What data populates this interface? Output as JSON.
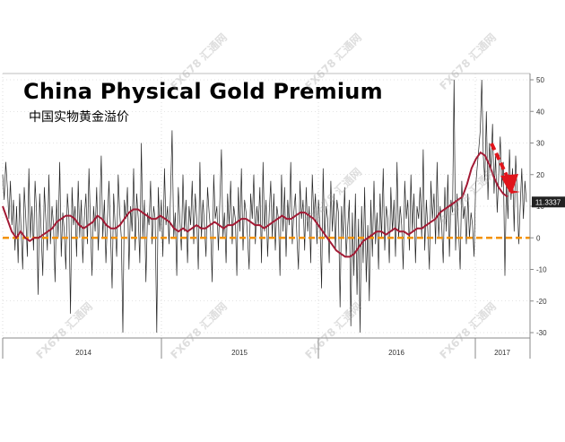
{
  "chart_data": {
    "type": "line",
    "title": "China Physical Gold Premium",
    "subtitle": "中国实物黄金溢价",
    "x_ticks": [
      "2014",
      "2015",
      "2016",
      "2017"
    ],
    "y_ticks": [
      "50",
      "40",
      "30",
      "20",
      "10",
      "0",
      "-10",
      "-20",
      "-30"
    ],
    "ylim": [
      -30,
      50
    ],
    "last_value_label": "11.3337",
    "watermark": "FX678 汇通网",
    "series": [
      {
        "values": [
          20,
          12,
          24,
          16,
          6,
          18,
          4,
          12,
          -4,
          10,
          -8,
          14,
          2,
          -10,
          16,
          6,
          -6,
          22,
          0,
          10,
          -4,
          18,
          8,
          -18,
          14,
          2,
          -12,
          16,
          6,
          -4,
          20,
          -2,
          10,
          4,
          -14,
          12,
          0,
          24,
          -6,
          8,
          2,
          -10,
          14,
          6,
          -24,
          16,
          4,
          10,
          -6,
          18,
          0,
          12,
          -8,
          6,
          14,
          -2,
          22,
          4,
          -12,
          10,
          2,
          16,
          -4,
          8,
          26,
          0,
          12,
          -8,
          6,
          18,
          2,
          -16,
          14,
          4,
          -6,
          20,
          8,
          0,
          -30,
          12,
          6,
          16,
          -10,
          10,
          2,
          22,
          -4,
          14,
          6,
          -8,
          30,
          0,
          12,
          -14,
          8,
          4,
          18,
          -2,
          10,
          6,
          -30,
          16,
          2,
          12,
          -6,
          22,
          4,
          10,
          -2,
          14,
          34,
          0,
          8,
          -12,
          16,
          6,
          -4,
          20,
          2,
          12,
          -8,
          10,
          4,
          18,
          -2,
          14,
          6,
          -10,
          24,
          0,
          12,
          4,
          -6,
          16,
          8,
          2,
          -14,
          20,
          6,
          10,
          -4,
          12,
          28,
          0,
          8,
          -8,
          14,
          4,
          18,
          -2,
          10,
          6,
          -12,
          16,
          2,
          22,
          -4,
          12,
          8,
          0,
          -10,
          14,
          6,
          20,
          -2,
          10,
          4,
          16,
          -8,
          24,
          2,
          12,
          -6,
          8,
          18,
          0,
          14,
          -4,
          10,
          6,
          -12,
          20,
          2,
          16,
          -6,
          12,
          4,
          24,
          -2,
          8,
          14,
          0,
          -10,
          18,
          6,
          12,
          -4,
          16,
          2,
          10,
          -8,
          20,
          6,
          14,
          -2,
          12,
          4,
          -16,
          22,
          0,
          10,
          6,
          -8,
          18,
          2,
          14,
          -4,
          12,
          8,
          -22,
          10,
          0,
          16,
          -6,
          4,
          12,
          -28,
          8,
          -12,
          14,
          -18,
          6,
          -30,
          10,
          -8,
          16,
          -14,
          4,
          -20,
          12,
          -6,
          18,
          -2,
          8,
          -10,
          14,
          0,
          22,
          -4,
          10,
          6,
          -8,
          16,
          2,
          12,
          -6,
          24,
          0,
          10,
          4,
          -10,
          18,
          6,
          12,
          -4,
          20,
          2,
          14,
          -8,
          10,
          6,
          16,
          0,
          28,
          -4,
          12,
          2,
          -10,
          18,
          6,
          14,
          -2,
          24,
          0,
          10,
          4,
          -8,
          16,
          2,
          20,
          -6,
          12,
          8,
          50,
          -4,
          14,
          2,
          -10,
          18,
          6,
          10,
          -2,
          14,
          0,
          8,
          4,
          -6,
          16,
          22,
          28,
          34,
          50,
          26,
          18,
          40,
          12,
          30,
          22,
          36,
          14,
          26,
          8,
          20,
          32,
          16,
          24,
          -12,
          18,
          6,
          28,
          12,
          22,
          2,
          26,
          14,
          -2,
          10,
          22,
          6,
          18,
          11.3
        ]
      },
      {
        "values": [
          10,
          6,
          2,
          0,
          2,
          0,
          -1,
          0,
          0,
          1,
          2,
          3,
          5,
          6,
          7,
          7,
          6,
          4,
          3,
          4,
          5,
          7,
          6,
          4,
          3,
          3,
          4,
          6,
          8,
          9,
          9,
          8,
          7,
          6,
          6,
          7,
          6,
          5,
          3,
          2,
          3,
          2,
          3,
          4,
          3,
          3,
          4,
          5,
          4,
          3,
          4,
          4,
          5,
          6,
          6,
          5,
          4,
          4,
          3,
          4,
          5,
          6,
          7,
          6,
          6,
          7,
          8,
          8,
          7,
          6,
          4,
          2,
          0,
          -2,
          -4,
          -5,
          -6,
          -6,
          -5,
          -3,
          -1,
          0,
          1,
          2,
          2,
          1,
          2,
          3,
          2,
          2,
          1,
          2,
          3,
          3,
          4,
          5,
          6,
          8,
          9,
          10,
          11,
          12,
          13,
          17,
          22,
          25,
          27,
          26,
          23,
          19,
          16,
          14,
          13
        ]
      }
    ],
    "annotations": [
      {
        "text": "",
        "color": "#e0151b",
        "type": "dashed-arrow"
      }
    ],
    "colors": {
      "price_line": "#222222",
      "moving_average": "#a31a34",
      "zero_line": "#f39200",
      "arrow": "#e0151b",
      "last_value_box": "#222222",
      "grid": "#c8c8c8"
    }
  }
}
